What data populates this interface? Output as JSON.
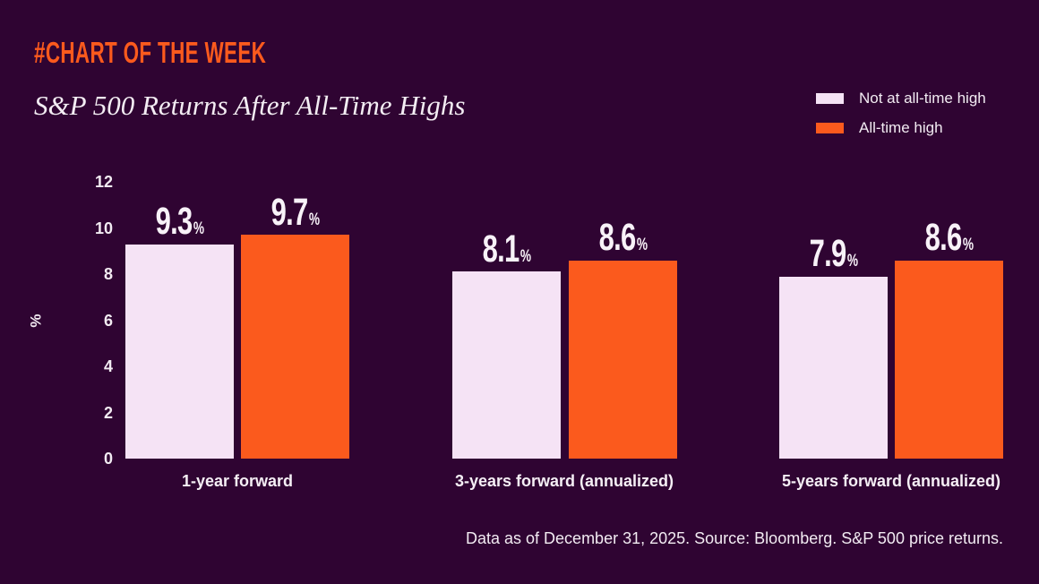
{
  "header": {
    "brand": "#CHART OF THE WEEK",
    "title": "S&P 500 Returns After All-Time Highs"
  },
  "legend": {
    "items": [
      {
        "label": "Not at all-time high",
        "color": "#F5E3F5"
      },
      {
        "label": "All-time high",
        "color": "#FB5A1D"
      }
    ]
  },
  "chart_data": {
    "type": "bar",
    "categories": [
      "1-year forward",
      "3-years forward (annualized)",
      "5-years forward (annualized)"
    ],
    "series": [
      {
        "name": "Not at all-time high",
        "color": "#F5E3F5",
        "values": [
          9.3,
          8.1,
          7.9
        ]
      },
      {
        "name": "All-time high",
        "color": "#FB5A1D",
        "values": [
          9.7,
          8.6,
          8.6
        ]
      }
    ],
    "title": "S&P 500 Returns After All-Time Highs",
    "xlabel": "",
    "ylabel": "%",
    "yticks": [
      0,
      2,
      4,
      6,
      8,
      10,
      12
    ],
    "ylim": [
      0,
      12
    ],
    "value_suffix": "%",
    "grid": false,
    "legend_position": "top-right"
  },
  "footer": {
    "source": "Data as of December 31, 2025. Source: Bloomberg. S&P 500 price returns."
  },
  "colors": {
    "background": "#2F0432",
    "orange": "#FB5A1D",
    "lavender": "#F5E3F5",
    "text": "#F2EBF2"
  }
}
